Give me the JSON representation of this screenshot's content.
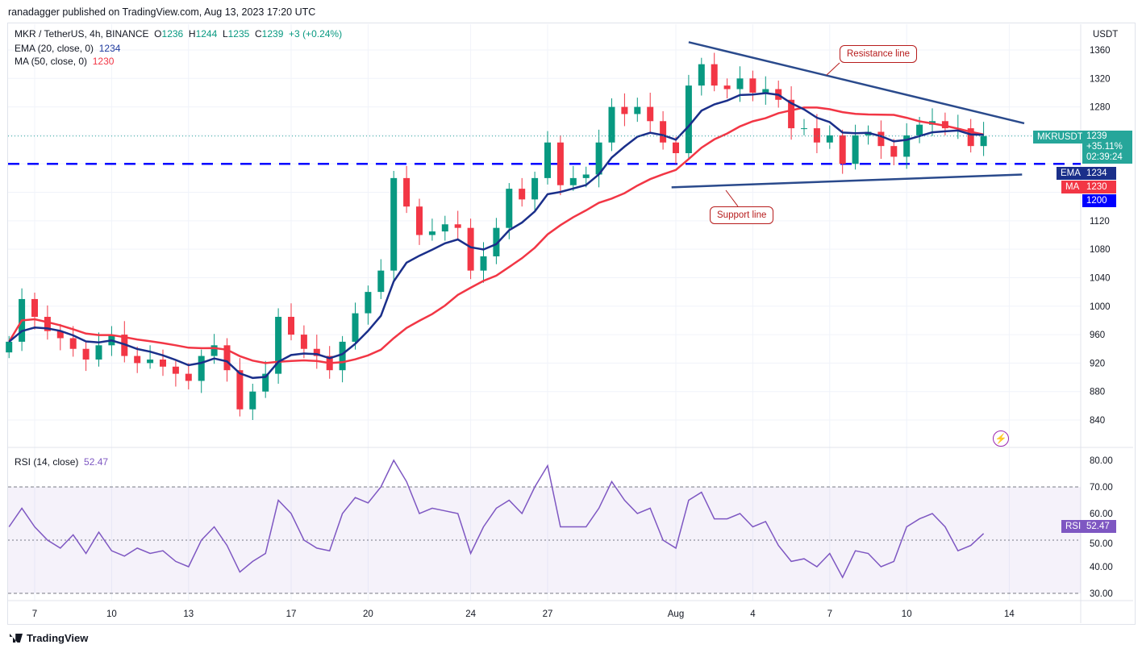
{
  "publisher": "ranadagger published on TradingView.com, Aug 13, 2023 17:20 UTC",
  "legend": {
    "symbol": "MKR / TetherUS, 4h, BINANCE",
    "o_label": "O",
    "o": "1236",
    "h_label": "H",
    "h": "1244",
    "l_label": "L",
    "l": "1235",
    "c_label": "C",
    "c": "1239",
    "change": "+3 (+0.24%)",
    "ema_label": "EMA (20, close, 0)",
    "ema_value": "1234",
    "ma_label": "MA (50, close, 0)",
    "ma_value": "1230",
    "rsi_label": "RSI (14, close)",
    "rsi_value": "52.47"
  },
  "currency": "USDT",
  "price_tags": {
    "symbol": "MKRUSDT",
    "price": "1239",
    "change_pct": "+35.11%",
    "countdown": "02:39:24",
    "ema_label": "EMA",
    "ema": "1234",
    "ma_label": "MA",
    "ma": "1230",
    "level": "1200",
    "rsi_label": "RSI",
    "rsi": "52.47"
  },
  "annotations": {
    "resistance": "Resistance line",
    "support": "Support line"
  },
  "footer": {
    "brand": "TradingView"
  },
  "colors": {
    "up": "#089981",
    "down": "#f23645",
    "ema": "#1a2f8a",
    "ma": "#f23645",
    "level": "#0000ff",
    "trend": "#2a4a8c",
    "rsi": "#7e57c2"
  },
  "chart_data": [
    {
      "type": "candlestick",
      "start": "2023-07-06",
      "interval": "12h",
      "close": [
        950,
        1010,
        985,
        965,
        955,
        940,
        925,
        945,
        960,
        930,
        920,
        925,
        915,
        905,
        895,
        930,
        945,
        910,
        855,
        880,
        905,
        985,
        960,
        940,
        930,
        910,
        950,
        990,
        1020,
        1050,
        1180,
        1140,
        1100,
        1105,
        1115,
        1110,
        1050,
        1070,
        1110,
        1165,
        1150,
        1180,
        1230,
        1170,
        1180,
        1185,
        1230,
        1280,
        1270,
        1280,
        1260,
        1230,
        1215,
        1310,
        1340,
        1310,
        1305,
        1320,
        1300,
        1305,
        1290,
        1250,
        1250,
        1230,
        1240,
        1200,
        1240,
        1245,
        1225,
        1210,
        1240,
        1255,
        1260,
        1250,
        1250,
        1225,
        1239
      ],
      "ylim": [
        810,
        1380
      ],
      "y_ticks": [
        840,
        880,
        920,
        960,
        1000,
        1040,
        1080,
        1120,
        1160,
        1200,
        1240,
        1280,
        1320,
        1360
      ],
      "x_ticks": [
        {
          "date": "2023-07-07",
          "label": "7"
        },
        {
          "date": "2023-07-10",
          "label": "10"
        },
        {
          "date": "2023-07-13",
          "label": "13"
        },
        {
          "date": "2023-07-17",
          "label": "17"
        },
        {
          "date": "2023-07-20",
          "label": "20"
        },
        {
          "date": "2023-07-24",
          "label": "24"
        },
        {
          "date": "2023-07-27",
          "label": "27"
        },
        {
          "date": "2023-08-01",
          "label": "Aug"
        },
        {
          "date": "2023-08-04",
          "label": "4"
        },
        {
          "date": "2023-08-07",
          "label": "7"
        },
        {
          "date": "2023-08-10",
          "label": "10"
        },
        {
          "date": "2023-08-14",
          "label": "14"
        }
      ],
      "horizontal_level": 1200,
      "resistance_line": [
        {
          "date": "2023-08-01T12:00",
          "price": 1371
        },
        {
          "date": "2023-08-14T14:00",
          "price": 1257
        }
      ],
      "support_line": [
        {
          "date": "2023-07-31T20:00",
          "price": 1167
        },
        {
          "date": "2023-08-14T12:00",
          "price": 1185
        }
      ]
    },
    {
      "type": "line",
      "name": "RSI (14, close)",
      "start": "2023-07-06",
      "interval": "12h",
      "values": [
        55,
        62,
        55,
        50,
        47,
        52,
        45,
        53,
        46,
        44,
        47,
        45,
        46,
        42,
        40,
        50,
        55,
        48,
        38,
        42,
        45,
        65,
        60,
        50,
        47,
        46,
        60,
        66,
        64,
        70,
        80,
        72,
        60,
        62,
        61,
        60,
        45,
        55,
        62,
        65,
        60,
        70,
        78,
        55,
        55,
        55,
        62,
        72,
        65,
        60,
        62,
        50,
        47,
        65,
        68,
        58,
        58,
        60,
        55,
        57,
        48,
        42,
        43,
        40,
        45,
        36,
        46,
        45,
        40,
        42,
        55,
        58,
        60,
        55,
        46,
        48,
        52.47
      ],
      "ylim": [
        27,
        83
      ],
      "y_ticks": [
        "30.00",
        "40.00",
        "50.00",
        "60.00",
        "70.00",
        "80.00"
      ],
      "band": [
        30,
        70
      ]
    }
  ]
}
